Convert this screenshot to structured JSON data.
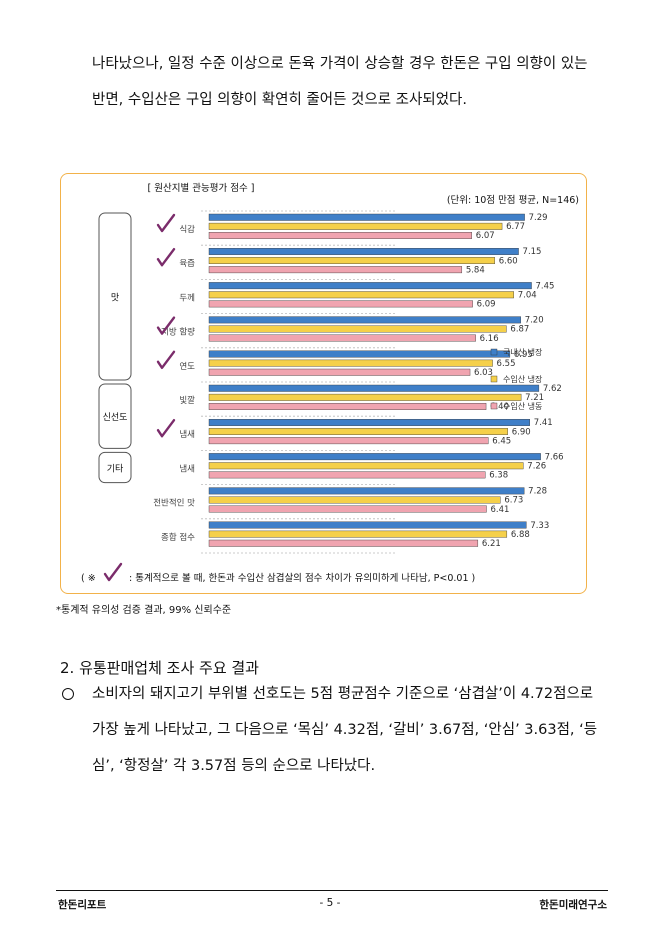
{
  "intro_paragraph": "나타났으나, 일정 수준 이상으로 돈육 가격이 상승할 경우 한돈은 구입 의향이 있는 반면, 수입산은 구입 의향이 확연히 줄어든 것으로 조사되었다.",
  "chart_data": {
    "type": "bar",
    "orientation": "horizontal",
    "title": "[ 원산지별 관능평가 점수 ]",
    "unit_note": "(단위: 10점 만점 평균, N=146)",
    "categories": [
      "식감",
      "육즙",
      "두께",
      "지방 함량",
      "연도",
      "빛깔",
      "냄새",
      "냄새",
      "전반적인 맛",
      "종합 점수"
    ],
    "category_labels_display": [
      "식감",
      "육즙",
      "두께",
      "지방 함량",
      "연도",
      "빛깔",
      "냄새",
      "냄새",
      "전반적인 맛",
      "종합 점수"
    ],
    "significant": [
      true,
      true,
      false,
      true,
      true,
      false,
      true,
      false,
      false,
      false
    ],
    "groups": [
      {
        "label": "맛",
        "from": 0,
        "to": 4
      },
      {
        "label": "신선도",
        "from": 5,
        "to": 6
      },
      {
        "label": "기타",
        "from": 7,
        "to": 7
      }
    ],
    "series": [
      {
        "name": "국내산 냉장",
        "color": "#3f7fc8",
        "values": [
          7.29,
          7.15,
          7.45,
          7.2,
          6.95,
          7.62,
          7.41,
          7.66,
          7.28,
          7.33
        ],
        "labels": [
          "7.29",
          "7.15",
          "7.45",
          "7.20",
          "6.95",
          "7.62",
          "7.41",
          "7.66",
          "7.28",
          "7.33"
        ]
      },
      {
        "name": "수입산 냉장",
        "color": "#f5d04a",
        "values": [
          6.77,
          6.6,
          7.04,
          6.87,
          6.55,
          7.21,
          6.9,
          7.26,
          6.73,
          6.88
        ],
        "labels": [
          "6.77",
          "6.60",
          "7.04",
          "6.87",
          "6.55",
          "7.21",
          "6.90",
          "7.26",
          "6.73",
          "6.88"
        ]
      },
      {
        "name": "수입산 냉동",
        "color": "#f0a4b0",
        "values": [
          6.07,
          5.84,
          6.09,
          6.16,
          6.03,
          6.4,
          6.45,
          6.38,
          6.41,
          6.21
        ],
        "labels": [
          "6.07",
          "5.84",
          "6.09",
          "6.16",
          "6.03",
          "6.40",
          "6.45",
          "6.38",
          "6.41",
          "6.21"
        ]
      }
    ],
    "xlim": [
      0,
      7.9
    ],
    "legend_position": "right",
    "footer_note_prefix": "( ※",
    "footer_note_text": ": 통계적으로 볼 때, 한돈과 수입산 삼겹살의 점수 차이가 유의미하게 나타남, P<0.01 )"
  },
  "footnote": "*통계적 유의성 검증 결과, 99% 신뢰수준",
  "section_title": "2. 유통판매업체 조사 주요 결과",
  "bullet_paragraph": "소비자의 돼지고기 부위별 선호도는 5점 평균점수 기준으로 ‘삼겹살’이 4.72점으로 가장 높게 나타났고, 그 다음으로 ‘목심’ 4.32점, ‘갈비’ 3.67점, ‘안심’ 3.63점, ‘등심’, ‘항정살’ 각 3.57점 등의 순으로 나타났다.",
  "footer": {
    "left": "한돈리포트",
    "center": "- 5 -",
    "right": "한돈미래연구소"
  }
}
